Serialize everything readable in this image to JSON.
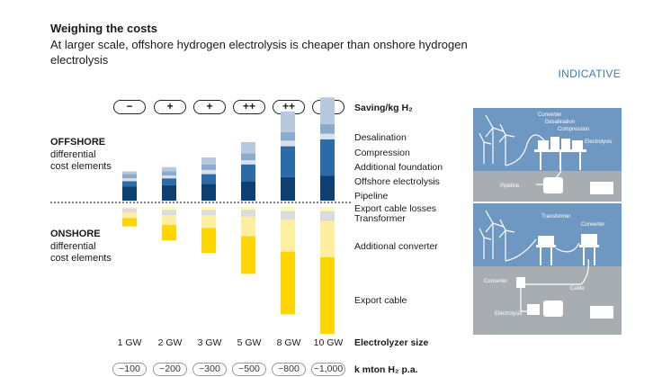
{
  "header": {
    "title": "Weighing the costs",
    "subtitle": "At larger scale, offshore hydrogen electrolysis is cheaper than onshore hydrogen electrolysis",
    "tag": "INDICATIVE"
  },
  "side": {
    "offshore_head": "OFFSHORE",
    "offshore_sub1": "differential",
    "offshore_sub2": "cost elements",
    "onshore_head": "ONSHORE",
    "onshore_sub1": "differential",
    "onshore_sub2": "cost elements"
  },
  "row_labels": {
    "saving": "Saving/kg H₂",
    "size": "Electrolyzer size",
    "production": "k mton H₂ p.a."
  },
  "savings": [
    "−",
    "+",
    "+",
    "++",
    "++",
    "++"
  ],
  "production": [
    "~100",
    "~200",
    "~300",
    "~500",
    "~800",
    "~1,000"
  ],
  "illustration": {
    "offshore": {
      "converter": "Converter",
      "desalination": "Desalination",
      "compression": "Compression",
      "electrolysis": "Electrolysis",
      "pipeline": "Pipeline"
    },
    "onshore": {
      "transformer": "Transformer",
      "converter": "Converter",
      "converter2": "Converter",
      "cable": "Cable",
      "electrolysis": "Electrolysis"
    }
  },
  "colors": {
    "desalination": "#b8c8de",
    "compression": "#8aabcc",
    "additional_foundation": "#d8e0ea",
    "offshore_electrolysis": "#2b6ca8",
    "pipeline": "#0d3f73",
    "export_cable_losses": "#fffab8",
    "transformer": "#dcdcdc",
    "additional_converter": "#fdeea0",
    "export_cable": "#ffd500",
    "illustration_top": "#6e97c2",
    "illustration_bottom": "#a8adb2"
  },
  "chart_data": {
    "type": "bar",
    "stacked": true,
    "diverging": true,
    "categories": [
      "1 GW",
      "2 GW",
      "3 GW",
      "5 GW",
      "8 GW",
      "10 GW"
    ],
    "xlabel": "Electrolyzer size",
    "note": "Indicative, no numeric axis; values are relative bar heights",
    "offshore_series": [
      {
        "name": "Pipeline",
        "values": [
          10,
          11,
          12,
          14,
          17,
          18
        ]
      },
      {
        "name": "Offshore electrolysis",
        "values": [
          4,
          5,
          7,
          12,
          22,
          26
        ]
      },
      {
        "name": "Additional foundation",
        "values": [
          2,
          2,
          3,
          3,
          4,
          4
        ]
      },
      {
        "name": "Compression",
        "values": [
          3,
          3,
          4,
          5,
          6,
          7
        ]
      },
      {
        "name": "Desalination",
        "values": [
          2,
          3,
          5,
          8,
          15,
          19
        ]
      }
    ],
    "onshore_series": [
      {
        "name": "Export cable losses",
        "values": [
          1,
          2,
          2,
          2,
          3,
          3
        ]
      },
      {
        "name": "Transformer",
        "values": [
          3,
          4,
          4,
          5,
          6,
          7
        ]
      },
      {
        "name": "Additional converter",
        "values": [
          4,
          7,
          9,
          14,
          23,
          26
        ]
      },
      {
        "name": "Export cable",
        "values": [
          6,
          11,
          18,
          27,
          45,
          55
        ]
      }
    ]
  }
}
